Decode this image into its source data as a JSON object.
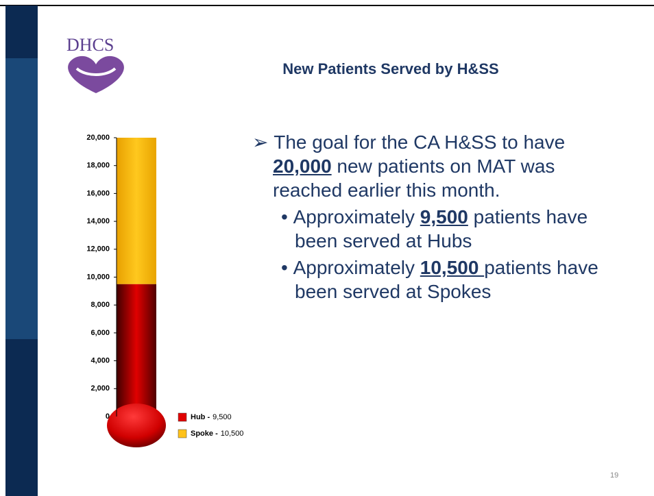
{
  "logo": "DHCS",
  "title": "New Patients Served by H&SS",
  "bullets": [
    {
      "level": 1,
      "parts": [
        "The goal for the CA H&SS to have ",
        "20,000",
        " new patients on MAT was reached earlier this month."
      ]
    },
    {
      "level": 2,
      "parts": [
        "Approximately ",
        "9,500",
        " patients have been served at Hubs"
      ]
    },
    {
      "level": 2,
      "parts": [
        "Approximately ",
        "10,500 ",
        "patients have been served at Spokes"
      ]
    }
  ],
  "page_number": "19",
  "chart_data": {
    "type": "stacked-bar",
    "series": [
      {
        "name": "Hub -",
        "color": "#e00000",
        "values": [
          9500
        ],
        "value_labels": [
          "9,500"
        ]
      },
      {
        "name": "Spoke -",
        "color": "#ffc21a",
        "values": [
          10500
        ],
        "value_labels": [
          "10,500"
        ]
      }
    ],
    "ylim": [
      0,
      20000
    ],
    "yticks": [
      0,
      {
        "value": 2000,
        "label": "2,000"
      },
      {
        "value": 4000,
        "label": "4,000"
      },
      {
        "value": 6000,
        "label": "6,000"
      },
      {
        "value": 8000,
        "label": "8,000"
      },
      {
        "value": 10000,
        "label": "10,000"
      },
      {
        "value": 12000,
        "label": "12,000"
      },
      {
        "value": 14000,
        "label": "14,000"
      },
      {
        "value": 16000,
        "label": "16,000"
      },
      {
        "value": 18000,
        "label": "18,000"
      },
      {
        "value": 20000,
        "label": "20,000"
      }
    ]
  }
}
